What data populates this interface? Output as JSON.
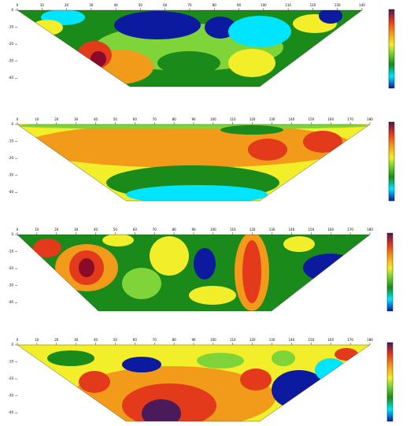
{
  "chart_data": [
    {
      "type": "contour",
      "xlim": [
        0,
        140
      ],
      "xticks": [
        0,
        10,
        20,
        30,
        40,
        50,
        60,
        70,
        80,
        90,
        100,
        110,
        120,
        130,
        140
      ],
      "ylim": [
        0,
        -45
      ],
      "yticks": [
        0,
        -10,
        -20,
        -30,
        -40
      ]
    },
    {
      "type": "contour",
      "xlim": [
        0,
        180
      ],
      "xticks": [
        0,
        10,
        20,
        30,
        40,
        50,
        60,
        70,
        80,
        90,
        100,
        110,
        120,
        130,
        140,
        150,
        160,
        170,
        180
      ],
      "ylim": [
        0,
        -45
      ],
      "yticks": [
        0,
        -10,
        -20,
        -30,
        -40
      ]
    },
    {
      "type": "contour",
      "xlim": [
        0,
        180
      ],
      "xticks": [
        0,
        10,
        20,
        30,
        40,
        50,
        60,
        70,
        80,
        90,
        100,
        110,
        120,
        130,
        140,
        150,
        160,
        170,
        180
      ],
      "ylim": [
        0,
        -45
      ],
      "yticks": [
        0,
        -10,
        -20,
        -30,
        -40
      ]
    },
    {
      "type": "contour",
      "xlim": [
        0,
        180
      ],
      "xticks": [
        0,
        10,
        20,
        30,
        40,
        50,
        60,
        70,
        80,
        90,
        100,
        110,
        120,
        130,
        140,
        150,
        160,
        170,
        180
      ],
      "ylim": [
        0,
        -45
      ],
      "yticks": [
        0,
        -10,
        -20,
        -30,
        -40
      ]
    }
  ]
}
